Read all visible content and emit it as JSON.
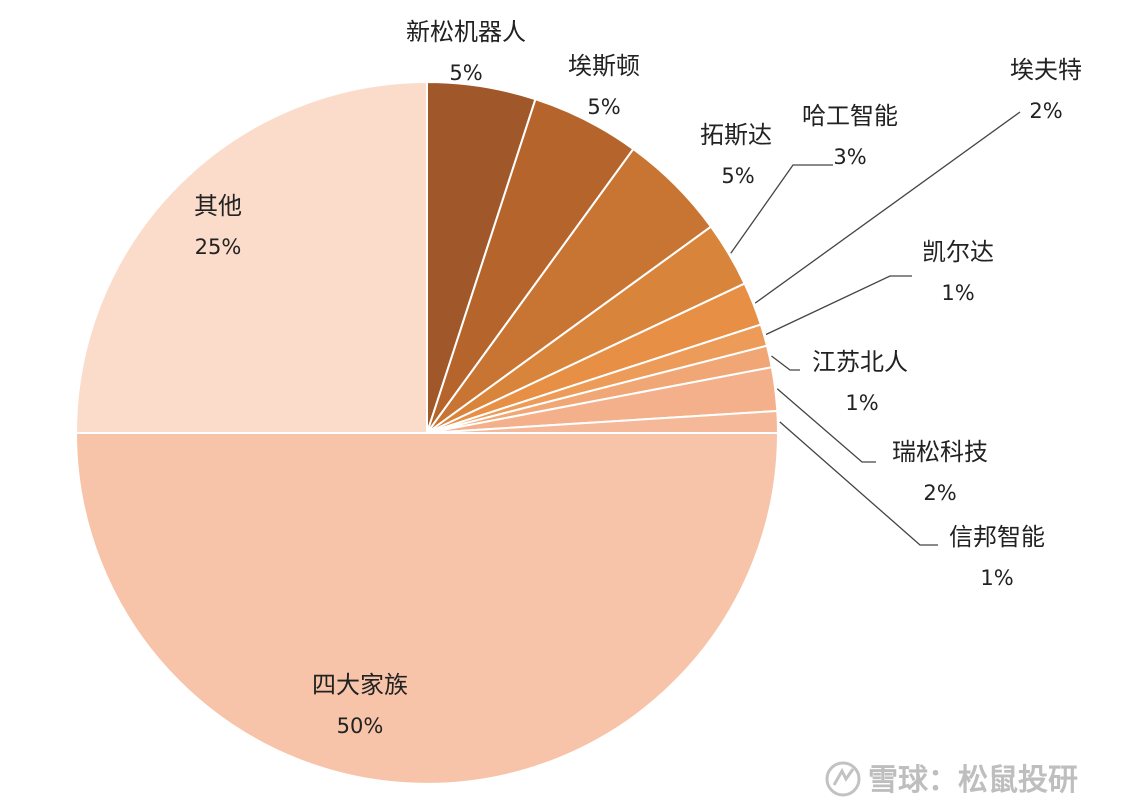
{
  "chart_data": {
    "type": "pie",
    "title": "",
    "slices": [
      {
        "label": "新松机器人",
        "value": 5,
        "value_label": "5%",
        "color": "#a0582a"
      },
      {
        "label": "埃斯顿",
        "value": 5,
        "value_label": "5%",
        "color": "#b5652c"
      },
      {
        "label": "拓斯达",
        "value": 5,
        "value_label": "5%",
        "color": "#c87533"
      },
      {
        "label": "哈工智能",
        "value": 3,
        "value_label": "3%",
        "color": "#d9843b"
      },
      {
        "label": "埃夫特",
        "value": 2,
        "value_label": "2%",
        "color": "#e68f45"
      },
      {
        "label": "凯尔达",
        "value": 1,
        "value_label": "1%",
        "color": "#ed9b58"
      },
      {
        "label": "江苏北人",
        "value": 1,
        "value_label": "1%",
        "color": "#f1a775"
      },
      {
        "label": "瑞松科技",
        "value": 2,
        "value_label": "2%",
        "color": "#f3b08a"
      },
      {
        "label": "信邦智能",
        "value": 1,
        "value_label": "1%",
        "color": "#f5b999"
      },
      {
        "label": "四大家族",
        "value": 50,
        "value_label": "50%",
        "color": "#f7c4a9"
      },
      {
        "label": "其他",
        "value": 25,
        "value_label": "25%",
        "color": "#fbdccb"
      }
    ],
    "start": "12 o'clock",
    "direction": "clockwise",
    "legend": "none (direct labels)"
  },
  "watermark": {
    "text": "雪球：松鼠投研"
  }
}
